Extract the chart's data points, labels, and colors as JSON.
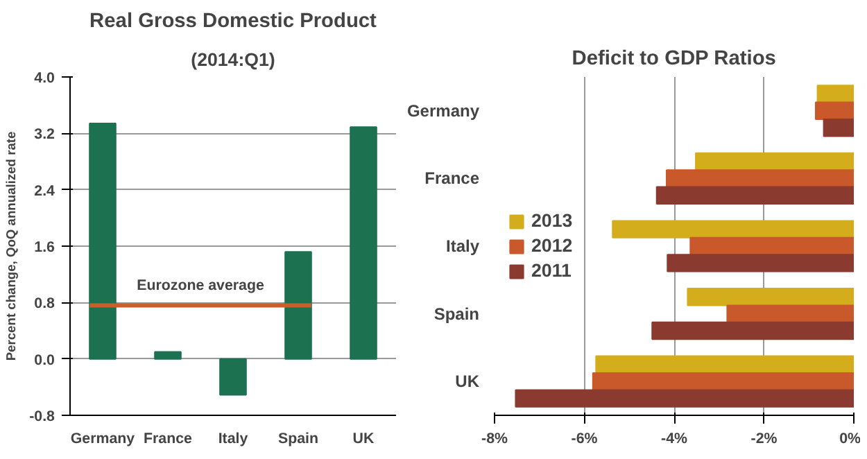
{
  "chart_data": [
    {
      "type": "bar",
      "title": "Real Gross Domestic Product",
      "subtitle": "(2014:Q1)",
      "ylabel": "Percent change, QoQ annualized rate",
      "categories": [
        "Germany",
        "France",
        "Italy",
        "Spain",
        "UK"
      ],
      "values": [
        3.34,
        0.1,
        -0.51,
        1.52,
        3.29
      ],
      "color": "#1b7150",
      "ylim": [
        -0.8,
        4.0
      ],
      "yticks": [
        {
          "value": -0.8,
          "label": "-0.8"
        },
        {
          "value": 0,
          "label": "0.0"
        },
        {
          "value": 0.8,
          "label": "0.8"
        },
        {
          "value": 1.6,
          "label": "1.6"
        },
        {
          "value": 2.4,
          "label": "2.4"
        },
        {
          "value": 3.2,
          "label": "3.2"
        },
        {
          "value": 4.0,
          "label": "4.0"
        }
      ],
      "grid": "y",
      "ref_lines": [
        {
          "axis": "y",
          "value": 0.76,
          "label": "Eurozone average",
          "color": "#c8602a"
        }
      ]
    },
    {
      "type": "bar",
      "orientation": "horizontal",
      "title": "Deficit to GDP Ratios",
      "categories": [
        "Germany",
        "France",
        "Italy",
        "Spain",
        "UK"
      ],
      "series": [
        {
          "name": "2013",
          "color": "#d4ad1c",
          "values": [
            -0.81,
            -3.52,
            -5.37,
            -3.7,
            -5.74
          ]
        },
        {
          "name": "2012",
          "color": "#c9582a",
          "values": [
            -0.85,
            -4.17,
            -3.64,
            -2.82,
            -5.81
          ]
        },
        {
          "name": "2011",
          "color": "#8b3a30",
          "values": [
            -0.67,
            -4.39,
            -4.15,
            -4.49,
            -7.53
          ]
        }
      ],
      "xlim": [
        -8,
        0
      ],
      "xticks": [
        {
          "value": -8,
          "label": "-8%"
        },
        {
          "value": -6,
          "label": "-6%"
        },
        {
          "value": -4,
          "label": "-4%"
        },
        {
          "value": -2,
          "label": "-2%"
        },
        {
          "value": 0,
          "label": "0%"
        }
      ],
      "grid": "x",
      "legend": "left"
    }
  ]
}
